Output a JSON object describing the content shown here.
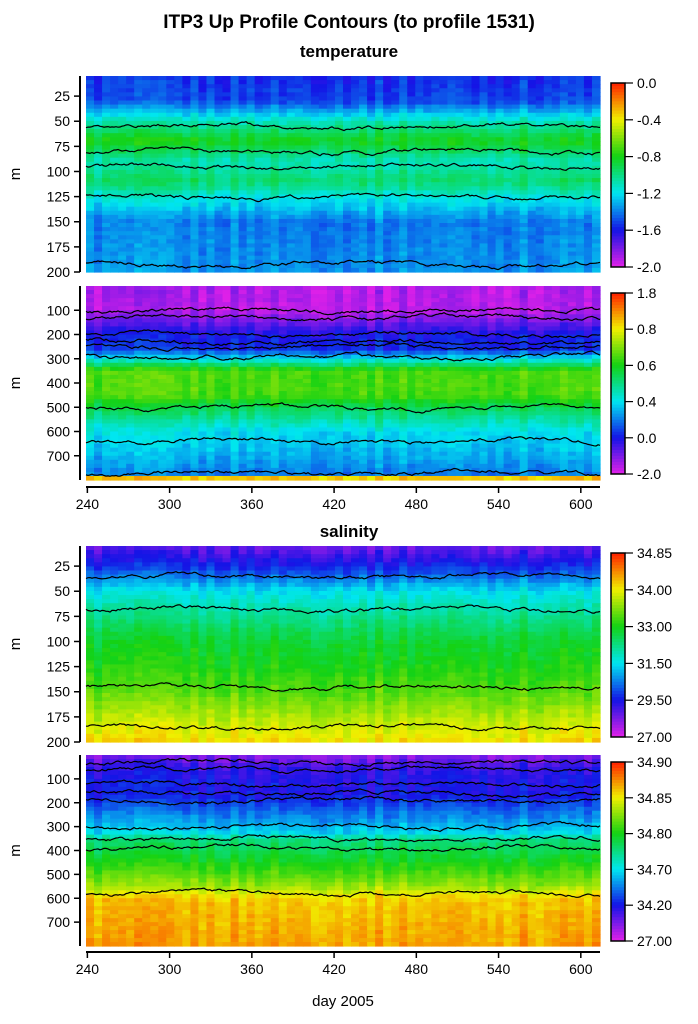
{
  "title": "ITP3 Up Profile Contours (to profile 1531)",
  "section_titles": [
    "temperature",
    "salinity"
  ],
  "xlabel": "day 2005",
  "chart_data": [
    {
      "type": "heatmap",
      "variable": "temperature",
      "ylabel": "m",
      "xlim": [
        239,
        614
      ],
      "ylim": [
        5,
        200
      ],
      "xticks": [
        240,
        300,
        360,
        420,
        480,
        540,
        600
      ],
      "show_xtick_labels": false,
      "yticks": [
        25,
        50,
        75,
        100,
        125,
        150,
        175,
        200
      ],
      "colorbar_ticks": [
        -2.0,
        -1.6,
        -1.2,
        -0.8,
        -0.4,
        0.0
      ],
      "colorbar_labels": [
        "-2.0",
        "-1.6",
        "-1.2",
        "-0.8",
        "-0.4",
        "0.0"
      ],
      "mean_profile": {
        "depth": [
          5,
          30,
          50,
          70,
          90,
          110,
          125,
          150,
          200
        ],
        "value": [
          -1.55,
          -1.5,
          -1.1,
          -0.8,
          -1.1,
          -0.95,
          -1.15,
          -1.4,
          -1.35
        ]
      },
      "contour_depths": [
        55,
        80,
        95,
        125,
        192
      ]
    },
    {
      "type": "heatmap",
      "variable": "temperature",
      "ylabel": "m",
      "xlim": [
        239,
        614
      ],
      "ylim": [
        0,
        800
      ],
      "xticks": [
        240,
        300,
        360,
        420,
        480,
        540,
        600
      ],
      "show_xtick_labels": true,
      "yticks": [
        100,
        200,
        300,
        400,
        500,
        600,
        700
      ],
      "colorbar_ticks": [
        -2.0,
        0.0,
        0.4,
        0.6,
        0.8,
        1.8
      ],
      "colorbar_labels": [
        "-2.0",
        "0.0",
        "0.4",
        "0.6",
        "0.8",
        "1.8"
      ],
      "mean_profile": {
        "depth": [
          0,
          100,
          150,
          200,
          260,
          300,
          350,
          450,
          500,
          600,
          700,
          780,
          790,
          800
        ],
        "value": [
          -1.5,
          -1.6,
          -0.8,
          0.0,
          0.05,
          0.4,
          0.65,
          0.65,
          0.55,
          0.4,
          0.3,
          0.2,
          1.0,
          1.0
        ]
      },
      "contour_depths": [
        100,
        130,
        200,
        230,
        250,
        290,
        500,
        640,
        770
      ]
    },
    {
      "type": "heatmap",
      "variable": "salinity",
      "ylabel": "m",
      "xlim": [
        239,
        614
      ],
      "ylim": [
        5,
        200
      ],
      "xticks": [
        240,
        300,
        360,
        420,
        480,
        540,
        600
      ],
      "show_xtick_labels": false,
      "yticks": [
        25,
        50,
        75,
        100,
        125,
        150,
        175,
        200
      ],
      "colorbar_ticks": [
        27.0,
        29.5,
        31.5,
        33.0,
        34.0,
        34.85
      ],
      "colorbar_labels": [
        "27.00",
        "29.50",
        "31.50",
        "33.00",
        "34.00",
        "34.85"
      ],
      "mean_profile": {
        "depth": [
          5,
          30,
          50,
          75,
          100,
          150,
          180,
          200
        ],
        "value": [
          28.5,
          30.0,
          31.5,
          32.2,
          32.8,
          33.3,
          33.8,
          34.1
        ]
      },
      "contour_depths": [
        35,
        68,
        145,
        185
      ]
    },
    {
      "type": "heatmap",
      "variable": "salinity",
      "ylabel": "m",
      "xlim": [
        239,
        614
      ],
      "ylim": [
        0,
        800
      ],
      "xticks": [
        240,
        300,
        360,
        420,
        480,
        540,
        600
      ],
      "show_xtick_labels": true,
      "yticks": [
        100,
        200,
        300,
        400,
        500,
        600,
        700
      ],
      "colorbar_ticks": [
        27.0,
        34.2,
        34.7,
        34.8,
        34.85,
        34.9
      ],
      "colorbar_labels": [
        "27.00",
        "34.20",
        "34.70",
        "34.80",
        "34.85",
        "34.90"
      ],
      "mean_profile": {
        "depth": [
          0,
          50,
          100,
          200,
          300,
          350,
          450,
          550,
          600,
          800
        ],
        "value": [
          30.0,
          33.0,
          34.0,
          34.3,
          34.6,
          34.75,
          34.8,
          34.83,
          34.86,
          34.87
        ]
      },
      "contour_depths": [
        30,
        60,
        120,
        160,
        190,
        300,
        350,
        390,
        580
      ]
    }
  ],
  "colors": {
    "palette": [
      "#e020e8",
      "#1414e6",
      "#00e6f0",
      "#14d214",
      "#f0f000",
      "#ff2000"
    ],
    "contour": "#000000"
  }
}
